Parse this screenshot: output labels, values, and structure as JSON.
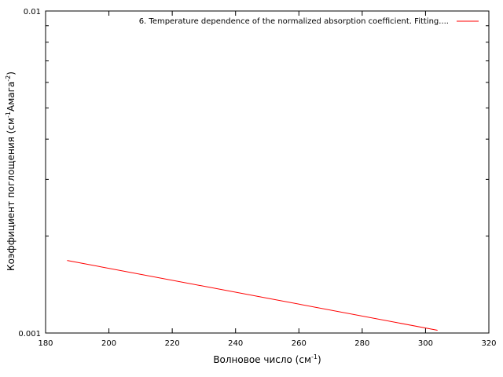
{
  "chart_data": {
    "type": "line",
    "title": "",
    "xlabel": "Волновое число (см",
    "xlabel_sup": "-1",
    "xlabel_end": ")",
    "ylabel": "Коэффициент поглощения (см",
    "ylabel_sup1": "-1",
    "ylabel_mid": "Амага",
    "ylabel_sup2": "-2",
    "ylabel_end": ")",
    "xlim": [
      180,
      320
    ],
    "ylim": [
      0.001,
      0.01
    ],
    "yscale": "log",
    "grid": false,
    "legend_position": "top-right",
    "x_ticks": [
      180,
      200,
      220,
      240,
      260,
      280,
      300,
      320
    ],
    "x_tick_labels": [
      "180",
      "200",
      "220",
      "240",
      "260",
      "280",
      "300",
      "320"
    ],
    "y_major_ticks": [
      0.001,
      0.01
    ],
    "y_major_tick_labels": [
      "0.001",
      "0.01"
    ],
    "y_minor_ticks": [
      0.002,
      0.003,
      0.004,
      0.005,
      0.006,
      0.007,
      0.008,
      0.009
    ],
    "series": [
      {
        "name": "6. Temperature dependence of the normalized absorption coefficient. Fitting....",
        "color": "#ff0000",
        "x": [
          186.8,
          303.8
        ],
        "y": [
          0.00168,
          0.00102
        ]
      }
    ]
  }
}
